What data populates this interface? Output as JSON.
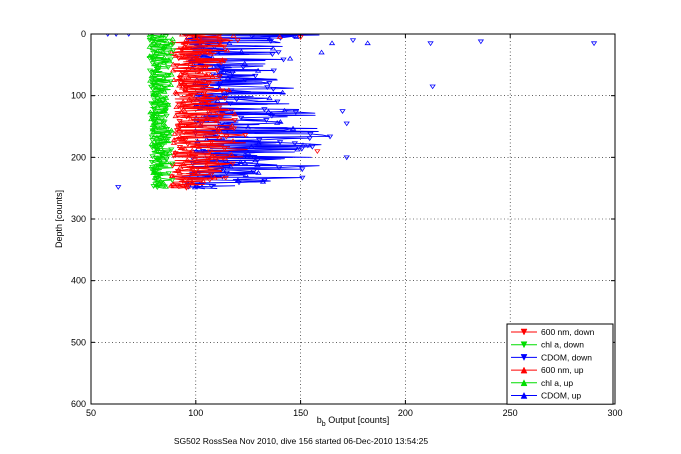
{
  "chart_data": {
    "type": "line",
    "title": "",
    "xlabel_main": "b",
    "xlabel_sub": "b",
    "xlabel_rest": " Output [counts]",
    "ylabel": "Depth [counts]",
    "caption": "SG502 RossSea Nov 2010, dive 156 started 06-Dec-2010 13:54:25",
    "xlim": [
      50,
      300
    ],
    "ylim": [
      0,
      600
    ],
    "y_reversed": true,
    "grid": "dotted",
    "xticks": [
      50,
      100,
      150,
      200,
      250,
      300
    ],
    "yticks": [
      0,
      100,
      200,
      300,
      400,
      500,
      600
    ],
    "legend_position": "bottom-right",
    "series": [
      {
        "name": "600 nm, down",
        "color": "#ff0000",
        "marker": "triangle-down",
        "direction": "down",
        "band": [
          [
            0,
            96,
            125
          ],
          [
            30,
            90,
            118
          ],
          [
            80,
            92,
            115
          ],
          [
            120,
            92,
            120
          ],
          [
            180,
            90,
            128
          ],
          [
            230,
            88,
            118
          ],
          [
            250,
            88,
            110
          ]
        ],
        "outliers": [
          [
            158,
            190
          ],
          [
            150,
            5
          ],
          [
            120,
            10
          ]
        ]
      },
      {
        "name": "chl a, down",
        "color": "#00dd00",
        "marker": "triangle-down",
        "direction": "down",
        "band": [
          [
            0,
            78,
            92
          ],
          [
            60,
            78,
            90
          ],
          [
            150,
            79,
            88
          ],
          [
            240,
            79,
            90
          ],
          [
            250,
            80,
            88
          ]
        ],
        "outliers": []
      },
      {
        "name": "CDOM, down",
        "color": "#0000ff",
        "marker": "triangle-down",
        "direction": "down",
        "band": [
          [
            0,
            90,
            160
          ],
          [
            30,
            95,
            150
          ],
          [
            60,
            98,
            140
          ],
          [
            100,
            100,
            150
          ],
          [
            150,
            100,
            165
          ],
          [
            200,
            98,
            165
          ],
          [
            240,
            92,
            150
          ],
          [
            250,
            95,
            135
          ]
        ],
        "outliers": [
          [
            58,
            0
          ],
          [
            62,
            0
          ],
          [
            68,
            0
          ],
          [
            175,
            10
          ],
          [
            212,
            15
          ],
          [
            236,
            12
          ],
          [
            290,
            15
          ],
          [
            213,
            85
          ],
          [
            172,
            200
          ],
          [
            172,
            145
          ],
          [
            170,
            125
          ],
          [
            63,
            248
          ]
        ]
      },
      {
        "name": "600 nm, up",
        "color": "#ff0000",
        "marker": "triangle-up",
        "direction": "up",
        "band": [
          [
            0,
            88,
            120
          ],
          [
            40,
            88,
            115
          ],
          [
            100,
            90,
            118
          ],
          [
            160,
            90,
            122
          ],
          [
            220,
            88,
            115
          ],
          [
            250,
            88,
            105
          ]
        ],
        "outliers": [
          [
            140,
            5
          ],
          [
            118,
            3
          ]
        ]
      },
      {
        "name": "chl a, up",
        "color": "#00dd00",
        "marker": "triangle-up",
        "direction": "up",
        "band": [
          [
            0,
            78,
            90
          ],
          [
            100,
            78,
            89
          ],
          [
            200,
            79,
            88
          ],
          [
            250,
            80,
            87
          ]
        ],
        "outliers": []
      },
      {
        "name": "CDOM, up",
        "color": "#0000ff",
        "marker": "triangle-up",
        "direction": "up",
        "band": [
          [
            0,
            95,
            150
          ],
          [
            50,
            98,
            135
          ],
          [
            100,
            100,
            148
          ],
          [
            150,
            100,
            155
          ],
          [
            200,
            98,
            150
          ],
          [
            250,
            95,
            130
          ]
        ],
        "outliers": [
          [
            160,
            30
          ],
          [
            165,
            15
          ],
          [
            182,
            15
          ],
          [
            148,
            5
          ],
          [
            145,
            40
          ]
        ]
      }
    ]
  }
}
